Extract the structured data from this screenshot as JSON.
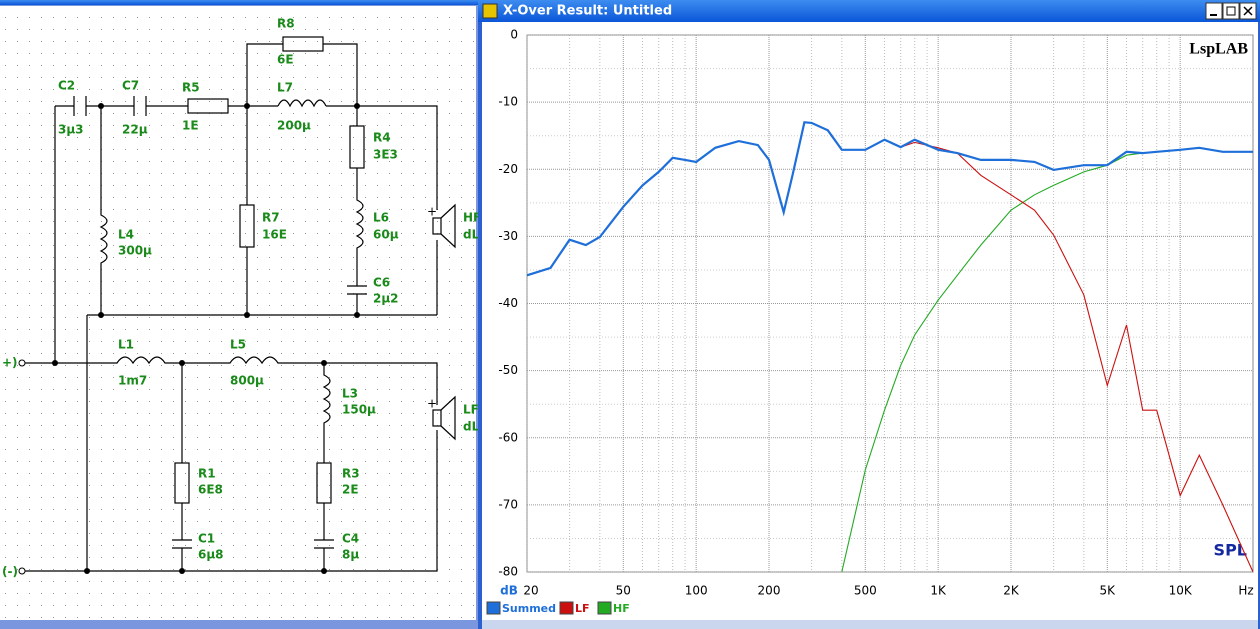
{
  "schematic": {
    "terminals": [
      "+)",
      "(-)"
    ],
    "components": [
      {
        "name": "C2",
        "value": "3µ3"
      },
      {
        "name": "C7",
        "value": "22µ"
      },
      {
        "name": "R5",
        "value": "1E"
      },
      {
        "name": "R8",
        "value": "6E"
      },
      {
        "name": "L7",
        "value": "200µ"
      },
      {
        "name": "R4",
        "value": "3E3"
      },
      {
        "name": "R7",
        "value": "16E"
      },
      {
        "name": "L4",
        "value": "300µ"
      },
      {
        "name": "L6",
        "value": "60µ"
      },
      {
        "name": "C6",
        "value": "2µ2"
      },
      {
        "name": "HF",
        "value": "dL"
      },
      {
        "name": "L1",
        "value": "1m7"
      },
      {
        "name": "L5",
        "value": "800µ"
      },
      {
        "name": "L3",
        "value": "150µ"
      },
      {
        "name": "LF",
        "value": "dL"
      },
      {
        "name": "R1",
        "value": "6E8"
      },
      {
        "name": "R3",
        "value": "2E"
      },
      {
        "name": "C1",
        "value": "6µ8"
      },
      {
        "name": "C4",
        "value": "8µ"
      }
    ]
  },
  "chart_window": {
    "title": "X-Over Result: Untitled"
  },
  "chart_data": {
    "type": "line",
    "title": "SPL",
    "watermark": "LspLAB",
    "ylabel": "dB",
    "xlabel": "Hz",
    "log_x": true,
    "grid": true,
    "xlim": [
      20,
      20000
    ],
    "ylim": [
      -80,
      0
    ],
    "xticks": [
      20,
      50,
      100,
      200,
      500,
      {
        "value": 1000,
        "label": "1K"
      },
      {
        "value": 2000,
        "label": "2K"
      },
      {
        "value": 5000,
        "label": "5K"
      },
      {
        "value": 10000,
        "label": "10K"
      }
    ],
    "xminorticks": [
      30,
      40,
      60,
      70,
      80,
      90,
      300,
      400,
      600,
      700,
      800,
      900,
      3000,
      4000,
      6000,
      7000,
      8000,
      9000
    ],
    "yticks": [
      0,
      -10,
      -20,
      -30,
      -40,
      -50,
      -60,
      -70,
      -80
    ],
    "yminorticks": [
      -5,
      -15,
      -25,
      -35,
      -45,
      -55,
      -65,
      -75
    ],
    "x": [
      20,
      25,
      30,
      35,
      40,
      50,
      60,
      70,
      80,
      90,
      100,
      120,
      150,
      180,
      200,
      230,
      250,
      280,
      300,
      350,
      400,
      500,
      600,
      700,
      800,
      1000,
      1200,
      1500,
      2000,
      2500,
      3000,
      4000,
      5000,
      6000,
      7000,
      8000,
      10000,
      12000,
      15000,
      20000
    ],
    "series": [
      {
        "name": "Summed",
        "color": "#1e6fd9",
        "values": [
          -35.8,
          -34.7,
          -30.5,
          -31.3,
          -30.1,
          -25.6,
          -22.4,
          -20.4,
          -18.3,
          -18.6,
          -18.9,
          -16.8,
          -15.8,
          -16.4,
          -18.6,
          -26.4,
          -20.9,
          -13.0,
          -13.1,
          -14.2,
          -17.1,
          -17.1,
          -15.6,
          -16.7,
          -15.6,
          -17.1,
          -17.6,
          -18.6,
          -18.6,
          -18.9,
          -20.1,
          -19.4,
          -19.4,
          -17.4,
          -17.6,
          -17.4,
          -17.1,
          -16.8,
          -17.4,
          -17.4
        ]
      },
      {
        "name": "LF",
        "color": "#cc1010",
        "values": [
          -35.8,
          -34.7,
          -30.5,
          -31.3,
          -30.1,
          -25.6,
          -22.4,
          -20.4,
          -18.3,
          -18.6,
          -18.9,
          -16.8,
          -15.8,
          -16.4,
          -18.6,
          -26.4,
          -20.9,
          -13.0,
          -13.1,
          -14.2,
          -17.1,
          -17.1,
          -15.6,
          -16.7,
          -16.0,
          -16.8,
          -17.6,
          -20.9,
          -23.8,
          -26.1,
          -29.8,
          -38.7,
          -52.2,
          -43.2,
          -55.9,
          -55.9,
          -68.6,
          -62.6,
          -70.0,
          -80
        ]
      },
      {
        "name": "HF",
        "color": "#22aa22",
        "values": [
          null,
          null,
          null,
          null,
          null,
          null,
          null,
          null,
          null,
          null,
          null,
          null,
          null,
          null,
          null,
          null,
          null,
          null,
          null,
          null,
          -80,
          -64.8,
          -55.9,
          -49.2,
          -44.7,
          -39.5,
          -35.8,
          -31.3,
          -26.1,
          -23.8,
          -22.4,
          -20.4,
          -19.4,
          -17.9,
          -17.6,
          -17.4,
          -17.1,
          -16.8,
          -17.4,
          -17.4
        ]
      }
    ]
  }
}
